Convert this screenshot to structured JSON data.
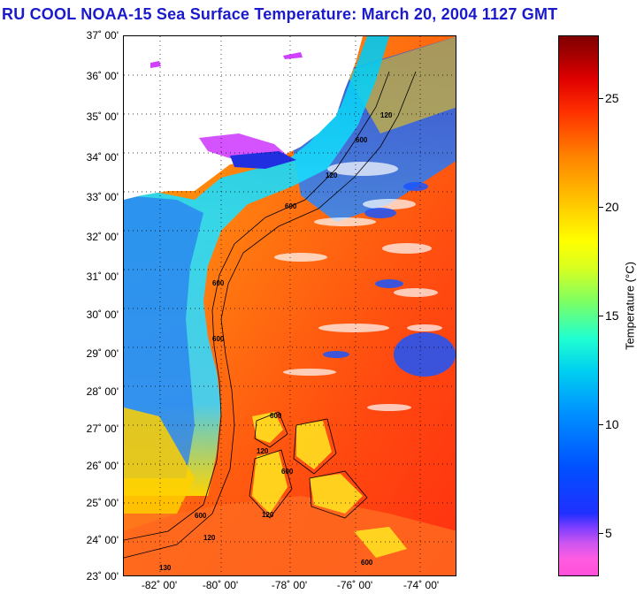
{
  "title": "RU COOL  NOAA-15  Sea Surface Temperature:  March 20, 2004 1127 GMT",
  "latitudes": [
    "37˚ 00'",
    "36˚ 00'",
    "35˚ 00'",
    "34˚ 00'",
    "33˚ 00'",
    "32˚ 00'",
    "31˚ 00'",
    "30˚ 00'",
    "29˚ 00'",
    "28˚ 00'",
    "27˚ 00'",
    "26˚ 00'",
    "25˚ 00'",
    "24˚ 00'",
    "23˚ 00'"
  ],
  "longitudes": [
    "-82˚ 00'",
    "-80˚ 00'",
    "-78˚ 00'",
    "-76˚ 00'",
    "-74˚ 00'"
  ],
  "colorbar": {
    "title": "Temperature (°C)",
    "ticks": [
      "25",
      "20",
      "15",
      "10",
      "5"
    ]
  },
  "contours": [
    "120",
    "600",
    "120",
    "600",
    "600",
    "600",
    "600",
    "120",
    "600",
    "600",
    "120",
    "130",
    "600",
    "120"
  ],
  "colors": {
    "title": "#1a1acc",
    "land": "#ffffff",
    "warm": "#ff5a1e",
    "cool": "#1f7bf0"
  }
}
